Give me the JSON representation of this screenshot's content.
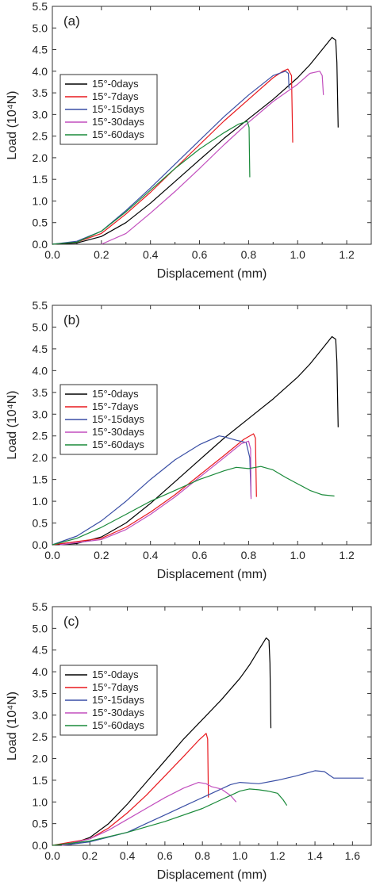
{
  "chart_data": [
    {
      "type": "line",
      "panel_label": "(a)",
      "xlabel": "Displacement (mm)",
      "ylabel": "Load (10⁴N)",
      "xlim": [
        0.0,
        1.3
      ],
      "ylim": [
        0.0,
        5.5
      ],
      "xticks": [
        "0.0",
        "0.2",
        "0.4",
        "0.6",
        "0.8",
        "1.0",
        "1.2"
      ],
      "yticks": [
        "0.0",
        "0.5",
        "1.0",
        "1.5",
        "2.0",
        "2.5",
        "3.0",
        "3.5",
        "4.0",
        "4.5",
        "5.0",
        "5.5"
      ],
      "legend_position": "upper-left",
      "series": [
        {
          "name": "15°-0days",
          "color": "#000000",
          "points": [
            [
              0,
              0
            ],
            [
              0.1,
              0.03
            ],
            [
              0.2,
              0.18
            ],
            [
              0.3,
              0.5
            ],
            [
              0.4,
              0.95
            ],
            [
              0.5,
              1.45
            ],
            [
              0.6,
              1.95
            ],
            [
              0.7,
              2.45
            ],
            [
              0.8,
              2.9
            ],
            [
              0.9,
              3.35
            ],
            [
              1.0,
              3.85
            ],
            [
              1.05,
              4.15
            ],
            [
              1.1,
              4.5
            ],
            [
              1.14,
              4.78
            ],
            [
              1.155,
              4.72
            ],
            [
              1.16,
              4.2
            ],
            [
              1.165,
              2.7
            ]
          ]
        },
        {
          "name": "15°-7days",
          "color": "#e8191e",
          "points": [
            [
              0,
              0
            ],
            [
              0.1,
              0.05
            ],
            [
              0.2,
              0.25
            ],
            [
              0.3,
              0.7
            ],
            [
              0.4,
              1.2
            ],
            [
              0.5,
              1.75
            ],
            [
              0.6,
              2.3
            ],
            [
              0.7,
              2.85
            ],
            [
              0.8,
              3.35
            ],
            [
              0.9,
              3.85
            ],
            [
              0.94,
              4.0
            ],
            [
              0.96,
              4.05
            ],
            [
              0.975,
              3.9
            ],
            [
              0.98,
              2.35
            ]
          ]
        },
        {
          "name": "15°-15days",
          "color": "#3a4fa5",
          "points": [
            [
              0,
              0
            ],
            [
              0.1,
              0.07
            ],
            [
              0.2,
              0.3
            ],
            [
              0.3,
              0.78
            ],
            [
              0.4,
              1.3
            ],
            [
              0.5,
              1.85
            ],
            [
              0.6,
              2.4
            ],
            [
              0.7,
              2.95
            ],
            [
              0.8,
              3.45
            ],
            [
              0.9,
              3.9
            ],
            [
              0.95,
              4.0
            ],
            [
              0.962,
              3.95
            ],
            [
              0.965,
              3.6
            ]
          ]
        },
        {
          "name": "15°-30days",
          "color": "#c24fbe",
          "points": [
            [
              0.2,
              0
            ],
            [
              0.3,
              0.25
            ],
            [
              0.4,
              0.72
            ],
            [
              0.5,
              1.22
            ],
            [
              0.6,
              1.75
            ],
            [
              0.7,
              2.3
            ],
            [
              0.8,
              2.82
            ],
            [
              0.9,
              3.3
            ],
            [
              1.0,
              3.7
            ],
            [
              1.05,
              3.95
            ],
            [
              1.09,
              4.0
            ],
            [
              1.1,
              3.9
            ],
            [
              1.105,
              3.45
            ]
          ]
        },
        {
          "name": "15°-60days",
          "color": "#1a8a3a",
          "points": [
            [
              0,
              0
            ],
            [
              0.1,
              0.05
            ],
            [
              0.2,
              0.3
            ],
            [
              0.3,
              0.75
            ],
            [
              0.4,
              1.25
            ],
            [
              0.5,
              1.75
            ],
            [
              0.6,
              2.2
            ],
            [
              0.7,
              2.58
            ],
            [
              0.76,
              2.78
            ],
            [
              0.795,
              2.84
            ],
            [
              0.802,
              2.7
            ],
            [
              0.805,
              1.55
            ]
          ]
        }
      ]
    },
    {
      "type": "line",
      "panel_label": "(b)",
      "xlabel": "Displacement (mm)",
      "ylabel": "Load (10⁴N)",
      "xlim": [
        0.0,
        1.3
      ],
      "ylim": [
        0.0,
        5.5
      ],
      "xticks": [
        "0.0",
        "0.2",
        "0.4",
        "0.6",
        "0.8",
        "1.0",
        "1.2"
      ],
      "yticks": [
        "0.0",
        "0.5",
        "1.0",
        "1.5",
        "2.0",
        "2.5",
        "3.0",
        "3.5",
        "4.0",
        "4.5",
        "5.0",
        "5.5"
      ],
      "legend_position": "middle-left",
      "series": [
        {
          "name": "15°-0days",
          "color": "#000000",
          "points": [
            [
              0,
              0
            ],
            [
              0.1,
              0.03
            ],
            [
              0.2,
              0.18
            ],
            [
              0.3,
              0.5
            ],
            [
              0.4,
              0.95
            ],
            [
              0.5,
              1.45
            ],
            [
              0.6,
              1.95
            ],
            [
              0.7,
              2.45
            ],
            [
              0.8,
              2.9
            ],
            [
              0.9,
              3.35
            ],
            [
              1.0,
              3.85
            ],
            [
              1.05,
              4.15
            ],
            [
              1.1,
              4.5
            ],
            [
              1.14,
              4.78
            ],
            [
              1.155,
              4.72
            ],
            [
              1.16,
              4.2
            ],
            [
              1.165,
              2.7
            ]
          ]
        },
        {
          "name": "15°-7days",
          "color": "#e8191e",
          "points": [
            [
              0,
              0
            ],
            [
              0.2,
              0.15
            ],
            [
              0.3,
              0.4
            ],
            [
              0.4,
              0.75
            ],
            [
              0.5,
              1.15
            ],
            [
              0.6,
              1.6
            ],
            [
              0.7,
              2.05
            ],
            [
              0.78,
              2.42
            ],
            [
              0.82,
              2.55
            ],
            [
              0.828,
              2.45
            ],
            [
              0.832,
              1.1
            ]
          ]
        },
        {
          "name": "15°-15days",
          "color": "#3a4fa5",
          "points": [
            [
              0,
              0
            ],
            [
              0.1,
              0.2
            ],
            [
              0.2,
              0.55
            ],
            [
              0.3,
              1.0
            ],
            [
              0.4,
              1.5
            ],
            [
              0.5,
              1.95
            ],
            [
              0.6,
              2.3
            ],
            [
              0.68,
              2.5
            ],
            [
              0.7,
              2.48
            ],
            [
              0.75,
              2.4
            ],
            [
              0.79,
              2.35
            ],
            [
              0.805,
              2.0
            ],
            [
              0.81,
              1.1
            ]
          ]
        },
        {
          "name": "15°-30days",
          "color": "#c24fbe",
          "points": [
            [
              0.03,
              0
            ],
            [
              0.2,
              0.12
            ],
            [
              0.3,
              0.35
            ],
            [
              0.4,
              0.7
            ],
            [
              0.5,
              1.1
            ],
            [
              0.6,
              1.55
            ],
            [
              0.7,
              2.0
            ],
            [
              0.77,
              2.32
            ],
            [
              0.8,
              2.38
            ],
            [
              0.808,
              2.2
            ],
            [
              0.81,
              1.05
            ]
          ]
        },
        {
          "name": "15°-60days",
          "color": "#1a8a3a",
          "points": [
            [
              0,
              0
            ],
            [
              0.1,
              0.15
            ],
            [
              0.2,
              0.4
            ],
            [
              0.3,
              0.7
            ],
            [
              0.4,
              1.0
            ],
            [
              0.5,
              1.25
            ],
            [
              0.6,
              1.5
            ],
            [
              0.7,
              1.7
            ],
            [
              0.75,
              1.78
            ],
            [
              0.8,
              1.75
            ],
            [
              0.85,
              1.8
            ],
            [
              0.9,
              1.72
            ],
            [
              0.95,
              1.55
            ],
            [
              1.0,
              1.4
            ],
            [
              1.05,
              1.25
            ],
            [
              1.1,
              1.15
            ],
            [
              1.15,
              1.12
            ]
          ]
        }
      ]
    },
    {
      "type": "line",
      "panel_label": "(c)",
      "xlabel": "Displacement (mm)",
      "ylabel": "Load (10⁴N)",
      "xlim": [
        0.0,
        1.7
      ],
      "ylim": [
        0.0,
        5.5
      ],
      "xticks": [
        "0.0",
        "0.2",
        "0.4",
        "0.6",
        "0.8",
        "1.0",
        "1.2",
        "1.4",
        "1.6"
      ],
      "yticks": [
        "0.0",
        "0.5",
        "1.0",
        "1.5",
        "2.0",
        "2.5",
        "3.0",
        "3.5",
        "4.0",
        "4.5",
        "5.0",
        "5.5"
      ],
      "legend_position": "middle-left",
      "series": [
        {
          "name": "15°-0days",
          "color": "#000000",
          "points": [
            [
              0,
              0
            ],
            [
              0.1,
              0.03
            ],
            [
              0.2,
              0.18
            ],
            [
              0.3,
              0.5
            ],
            [
              0.4,
              0.95
            ],
            [
              0.5,
              1.45
            ],
            [
              0.6,
              1.95
            ],
            [
              0.7,
              2.45
            ],
            [
              0.8,
              2.9
            ],
            [
              0.9,
              3.35
            ],
            [
              1.0,
              3.85
            ],
            [
              1.05,
              4.15
            ],
            [
              1.1,
              4.5
            ],
            [
              1.14,
              4.78
            ],
            [
              1.155,
              4.72
            ],
            [
              1.16,
              4.2
            ],
            [
              1.165,
              2.7
            ]
          ]
        },
        {
          "name": "15°-7days",
          "color": "#e8191e",
          "points": [
            [
              0,
              0
            ],
            [
              0.2,
              0.15
            ],
            [
              0.3,
              0.4
            ],
            [
              0.4,
              0.75
            ],
            [
              0.5,
              1.15
            ],
            [
              0.6,
              1.6
            ],
            [
              0.7,
              2.05
            ],
            [
              0.78,
              2.42
            ],
            [
              0.82,
              2.58
            ],
            [
              0.828,
              2.45
            ],
            [
              0.832,
              1.1
            ]
          ]
        },
        {
          "name": "15°-15days",
          "color": "#3a4fa5",
          "points": [
            [
              0.05,
              0
            ],
            [
              0.2,
              0.08
            ],
            [
              0.4,
              0.3
            ],
            [
              0.5,
              0.5
            ],
            [
              0.6,
              0.7
            ],
            [
              0.7,
              0.9
            ],
            [
              0.8,
              1.1
            ],
            [
              0.9,
              1.3
            ],
            [
              0.95,
              1.4
            ],
            [
              1.0,
              1.45
            ],
            [
              1.1,
              1.42
            ],
            [
              1.2,
              1.5
            ],
            [
              1.3,
              1.6
            ],
            [
              1.4,
              1.72
            ],
            [
              1.45,
              1.7
            ],
            [
              1.5,
              1.55
            ],
            [
              1.6,
              1.55
            ],
            [
              1.66,
              1.55
            ]
          ]
        },
        {
          "name": "15°-30days",
          "color": "#c24fbe",
          "points": [
            [
              0.05,
              0
            ],
            [
              0.2,
              0.15
            ],
            [
              0.3,
              0.35
            ],
            [
              0.4,
              0.6
            ],
            [
              0.5,
              0.85
            ],
            [
              0.6,
              1.1
            ],
            [
              0.7,
              1.32
            ],
            [
              0.78,
              1.45
            ],
            [
              0.82,
              1.42
            ],
            [
              0.85,
              1.35
            ],
            [
              0.9,
              1.3
            ],
            [
              0.95,
              1.15
            ],
            [
              0.98,
              1.0
            ]
          ]
        },
        {
          "name": "15°-60days",
          "color": "#1a8a3a",
          "points": [
            [
              0,
              0
            ],
            [
              0.2,
              0.1
            ],
            [
              0.4,
              0.3
            ],
            [
              0.6,
              0.55
            ],
            [
              0.8,
              0.85
            ],
            [
              0.9,
              1.05
            ],
            [
              1.0,
              1.25
            ],
            [
              1.05,
              1.3
            ],
            [
              1.1,
              1.28
            ],
            [
              1.15,
              1.25
            ],
            [
              1.2,
              1.2
            ],
            [
              1.23,
              1.05
            ],
            [
              1.25,
              0.92
            ]
          ]
        }
      ]
    }
  ]
}
